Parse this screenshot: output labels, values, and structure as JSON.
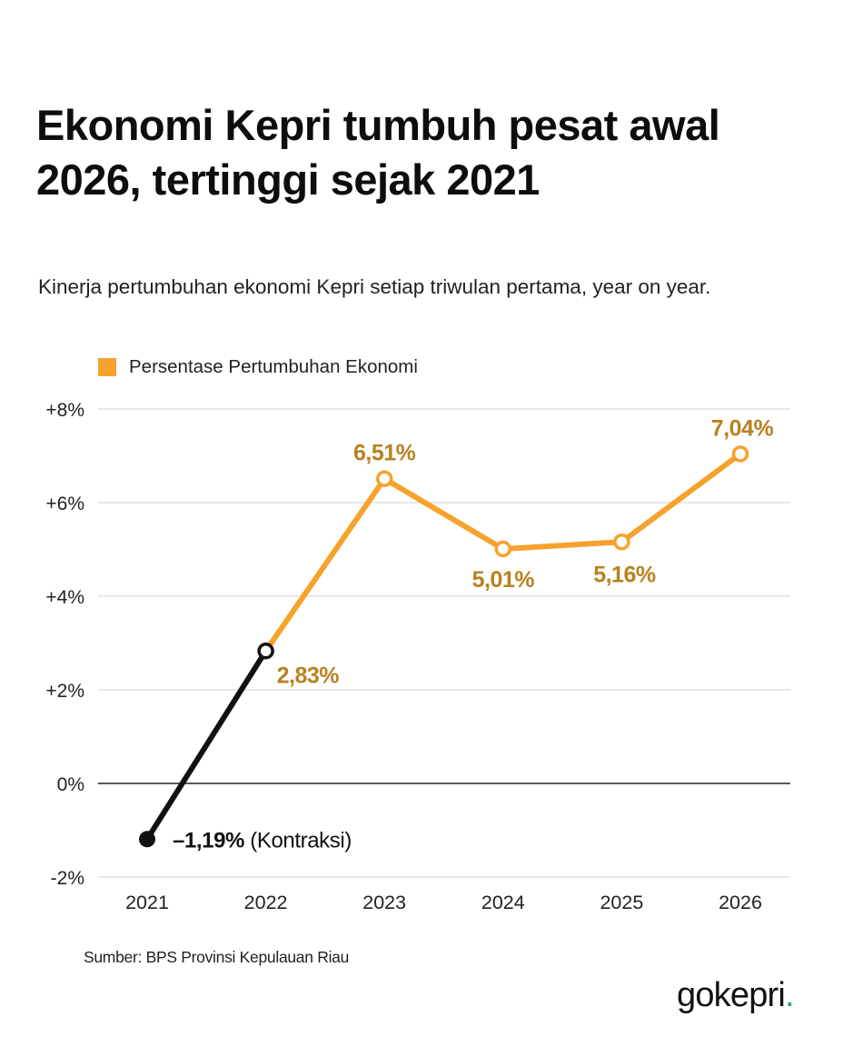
{
  "title": "Ekonomi Kepri tumbuh pesat awal 2026, tertinggi sejak 2021",
  "subtitle": "Kinerja pertumbuhan ekonomi Kepri setiap triwulan pertama, year on year.",
  "legend": {
    "label": "Persentase Pertumbuhan Ekonomi",
    "color": "#f6a22c"
  },
  "source": "Sumber: BPS Provinsi Kepulauan Riau",
  "brand": {
    "name": "gokepri",
    "dot": ".",
    "dot_color": "#1fa389"
  },
  "colors": {
    "series": "#f6a22c",
    "label": "#b8811f",
    "negative": "#111111",
    "grid": "#d9d9d9",
    "zero": "#222222"
  },
  "chart_data": {
    "type": "line",
    "x": [
      "2021",
      "2022",
      "2023",
      "2024",
      "2025",
      "2026"
    ],
    "series": [
      {
        "name": "Persentase Pertumbuhan Ekonomi",
        "values": [
          -1.19,
          2.83,
          6.51,
          5.01,
          5.16,
          7.04
        ]
      }
    ],
    "data_labels": [
      "–1,19%",
      "2,83%",
      "6,51%",
      "5,01%",
      "5,16%",
      "7,04%"
    ],
    "annotation": "(Kontraksi)",
    "yticks": [
      "+8%",
      "+6%",
      "+4%",
      "+2%",
      "0%",
      "-2%"
    ],
    "ytick_values": [
      8,
      6,
      4,
      2,
      0,
      -2
    ],
    "ylim": [
      -2,
      8
    ],
    "grid": true,
    "legend_position": "top-left"
  }
}
